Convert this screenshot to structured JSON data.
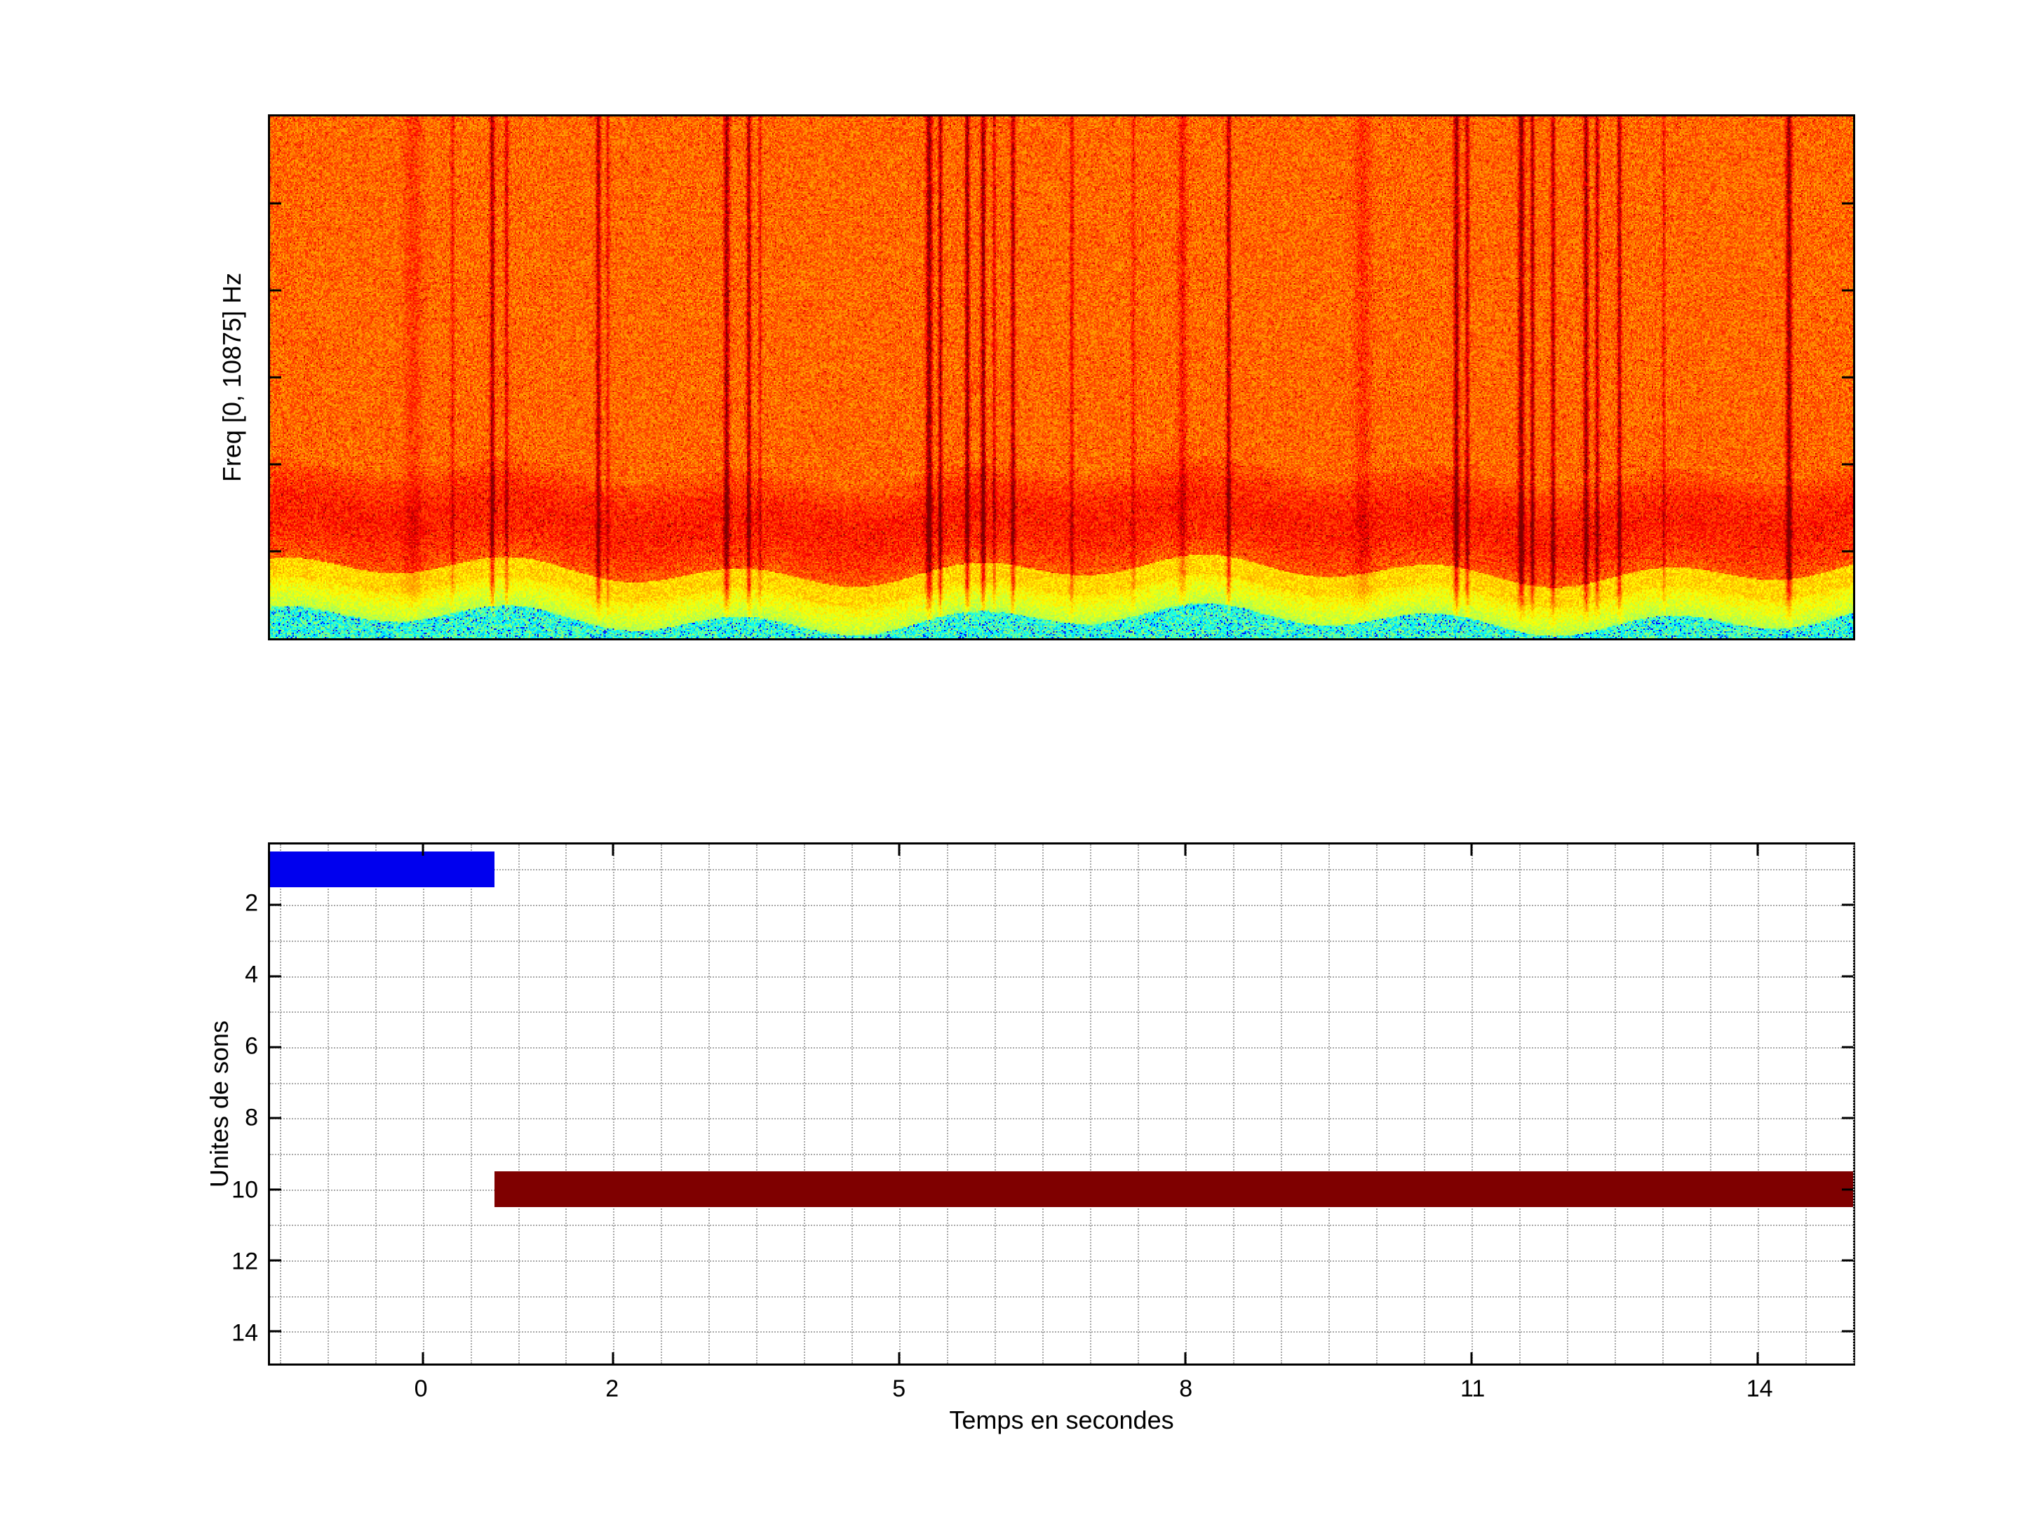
{
  "figure": {
    "background": "#ffffff",
    "axis_color": "#000000",
    "grid_color": "#a8a8a8",
    "font_color": "#000000"
  },
  "chart_data": [
    {
      "type": "heatmap",
      "subplot": "top",
      "name": "spectrogram",
      "title": "",
      "xlabel": "",
      "ylabel": "Freq [0, 10875] Hz",
      "freq_range_hz": [
        0,
        10875
      ],
      "colormap": "jet",
      "value_scale": "0 = blue (low energy), 1 = dark red (high energy)",
      "background_texture": "dense yellow-orange speckle across the whole band",
      "bands_y_frac_from_top": [
        {
          "name": "broadband-orange",
          "from": 0.0,
          "to": 0.68,
          "jet_value": [
            0.71,
            0.84
          ]
        },
        {
          "name": "high-energy-red",
          "from": 0.68,
          "to": 0.87,
          "jet_value": [
            0.72,
            0.92
          ]
        },
        {
          "name": "yellow-green-low",
          "from": 0.87,
          "to": 0.963,
          "jet_value": [
            0.51,
            0.7
          ]
        },
        {
          "name": "cyan-floor",
          "from": 0.963,
          "to": 1.0,
          "jet_value": [
            0.14,
            0.56
          ]
        }
      ],
      "transients_x_frac": [
        {
          "x": 0.09,
          "s": 0.22,
          "w": 0.0055
        },
        {
          "x": 0.115,
          "s": 0.38,
          "w": 0.0011
        },
        {
          "x": 0.14,
          "s": 0.85,
          "w": 0.0014
        },
        {
          "x": 0.149,
          "s": 0.6,
          "w": 0.0011
        },
        {
          "x": 0.207,
          "s": 0.8,
          "w": 0.0014
        },
        {
          "x": 0.213,
          "s": 0.4,
          "w": 0.001
        },
        {
          "x": 0.288,
          "s": 0.9,
          "w": 0.0017
        },
        {
          "x": 0.302,
          "s": 0.85,
          "w": 0.0013
        },
        {
          "x": 0.309,
          "s": 0.4,
          "w": 0.001
        },
        {
          "x": 0.416,
          "s": 1.0,
          "w": 0.0019
        },
        {
          "x": 0.423,
          "s": 0.85,
          "w": 0.0012
        },
        {
          "x": 0.44,
          "s": 0.95,
          "w": 0.0014
        },
        {
          "x": 0.45,
          "s": 0.95,
          "w": 0.0014
        },
        {
          "x": 0.457,
          "s": 0.55,
          "w": 0.001
        },
        {
          "x": 0.469,
          "s": 0.85,
          "w": 0.0013
        },
        {
          "x": 0.506,
          "s": 0.5,
          "w": 0.0012
        },
        {
          "x": 0.545,
          "s": 0.3,
          "w": 0.0014
        },
        {
          "x": 0.576,
          "s": 0.4,
          "w": 0.0025
        },
        {
          "x": 0.605,
          "s": 0.75,
          "w": 0.0014
        },
        {
          "x": 0.69,
          "s": 0.25,
          "w": 0.005
        },
        {
          "x": 0.749,
          "s": 0.95,
          "w": 0.0017
        },
        {
          "x": 0.756,
          "s": 0.75,
          "w": 0.0012
        },
        {
          "x": 0.79,
          "s": 1.0,
          "w": 0.0018
        },
        {
          "x": 0.797,
          "s": 0.85,
          "w": 0.0012
        },
        {
          "x": 0.81,
          "s": 0.8,
          "w": 0.0013
        },
        {
          "x": 0.831,
          "s": 0.9,
          "w": 0.0015
        },
        {
          "x": 0.838,
          "s": 0.75,
          "w": 0.0012
        },
        {
          "x": 0.852,
          "s": 0.8,
          "w": 0.0013
        },
        {
          "x": 0.88,
          "s": 0.4,
          "w": 0.001
        },
        {
          "x": 0.959,
          "s": 0.95,
          "w": 0.0018
        }
      ]
    },
    {
      "type": "bar",
      "subplot": "bottom",
      "name": "sound-units-timeline",
      "orientation": "horizontal",
      "title": "",
      "xlabel": "Temps en secondes",
      "ylabel": "Unites de sons",
      "xlim": [
        -1.6,
        15.0
      ],
      "ylim": [
        0.3,
        14.9
      ],
      "y_axis_direction": "reversed (unit numbers increase downward)",
      "x_ticks": [
        "0",
        "2",
        "5",
        "8",
        "11",
        "14"
      ],
      "x_tick_values": [
        0,
        2,
        5,
        8,
        11,
        14
      ],
      "y_ticks": [
        "2",
        "4",
        "6",
        "8",
        "10",
        "12",
        "14"
      ],
      "y_tick_values": [
        2,
        4,
        6,
        8,
        10,
        12,
        14
      ],
      "grid": "dotted",
      "grid_x_step": 0.5,
      "grid_y_step": 1,
      "bar_height_units": 1,
      "segments": [
        {
          "sound_unit": 1,
          "t_start": -1.6,
          "t_end": 0.75,
          "color": "#0000ee"
        },
        {
          "sound_unit": 10,
          "t_start": 0.75,
          "t_end": 15.0,
          "color": "#7f0000"
        }
      ]
    }
  ]
}
